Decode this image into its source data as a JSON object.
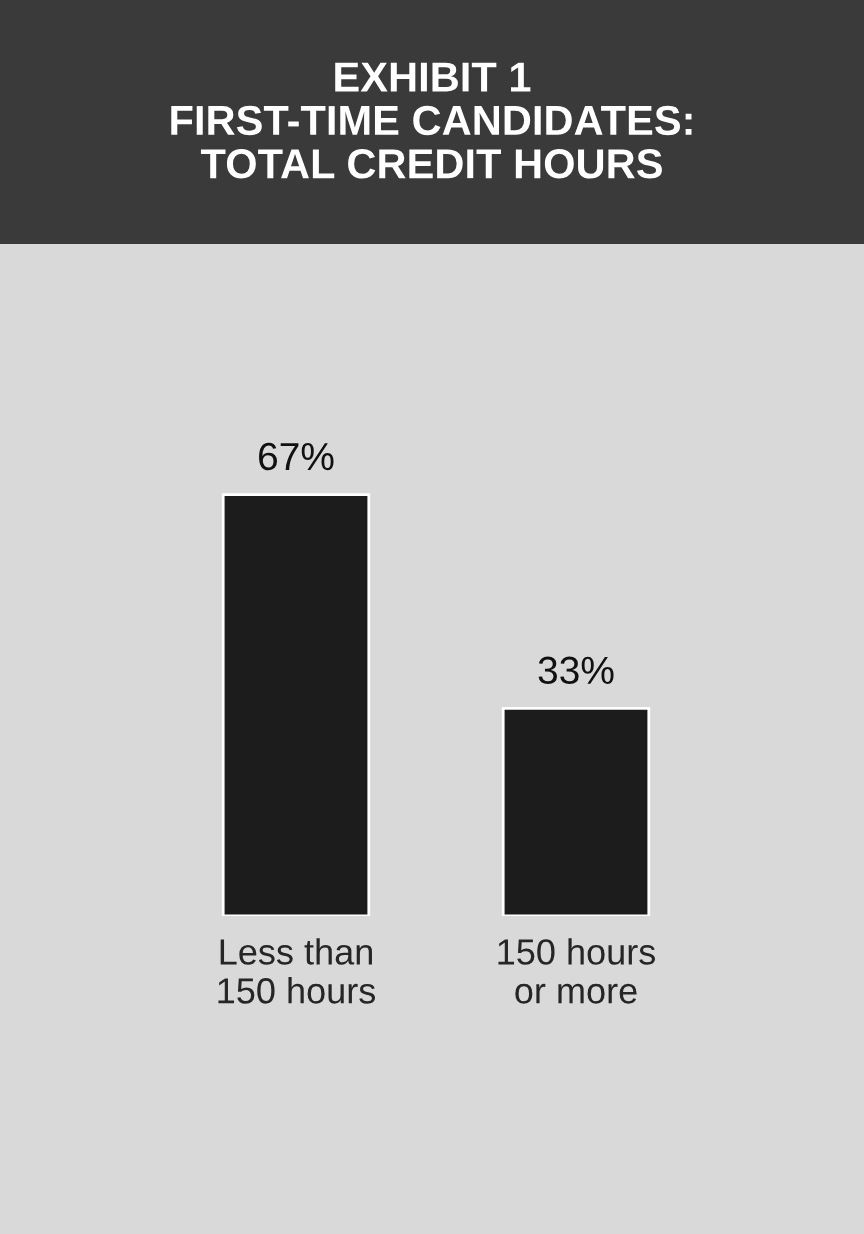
{
  "chart_data": {
    "type": "bar",
    "title": "EXHIBIT 1\nFIRST-TIME CANDIDATES:\nTOTAL CREDIT HOURS",
    "categories": [
      "Less than\n150 hours",
      "150 hours\nor more"
    ],
    "values": [
      67,
      33
    ],
    "color": "#1c1c1c",
    "data_labels": true,
    "value_labels": [
      "67%",
      "33%"
    ],
    "grid": false,
    "legend": false
  }
}
